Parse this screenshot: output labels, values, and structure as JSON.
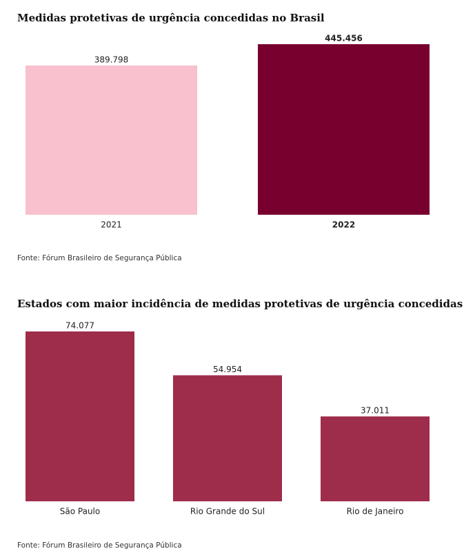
{
  "chart_data": [
    {
      "type": "bar",
      "title": "Medidas protetivas de urgência concedidas no Brasil",
      "categories": [
        "2021",
        "2022"
      ],
      "values": [
        389798,
        445456
      ],
      "value_labels": [
        "389.798",
        "445.456"
      ],
      "colors": [
        "#f9c0cd",
        "#78002e"
      ],
      "source": "Fonte: Fórum Brasileiro de Segurança Pública"
    },
    {
      "type": "bar",
      "title": "Estados com maior incidência de medidas protetivas de urgência concedidas",
      "categories": [
        "São Paulo",
        "Rio Grande do Sul",
        "Rio de Janeiro"
      ],
      "values": [
        74077,
        54954,
        37011
      ],
      "value_labels": [
        "74.077",
        "54.954",
        "37.011"
      ],
      "colors": [
        "#9e2d4b",
        "#9e2d4b",
        "#9e2d4b"
      ],
      "source": "Fonte: Fórum Brasileiro de Segurança Pública"
    }
  ]
}
